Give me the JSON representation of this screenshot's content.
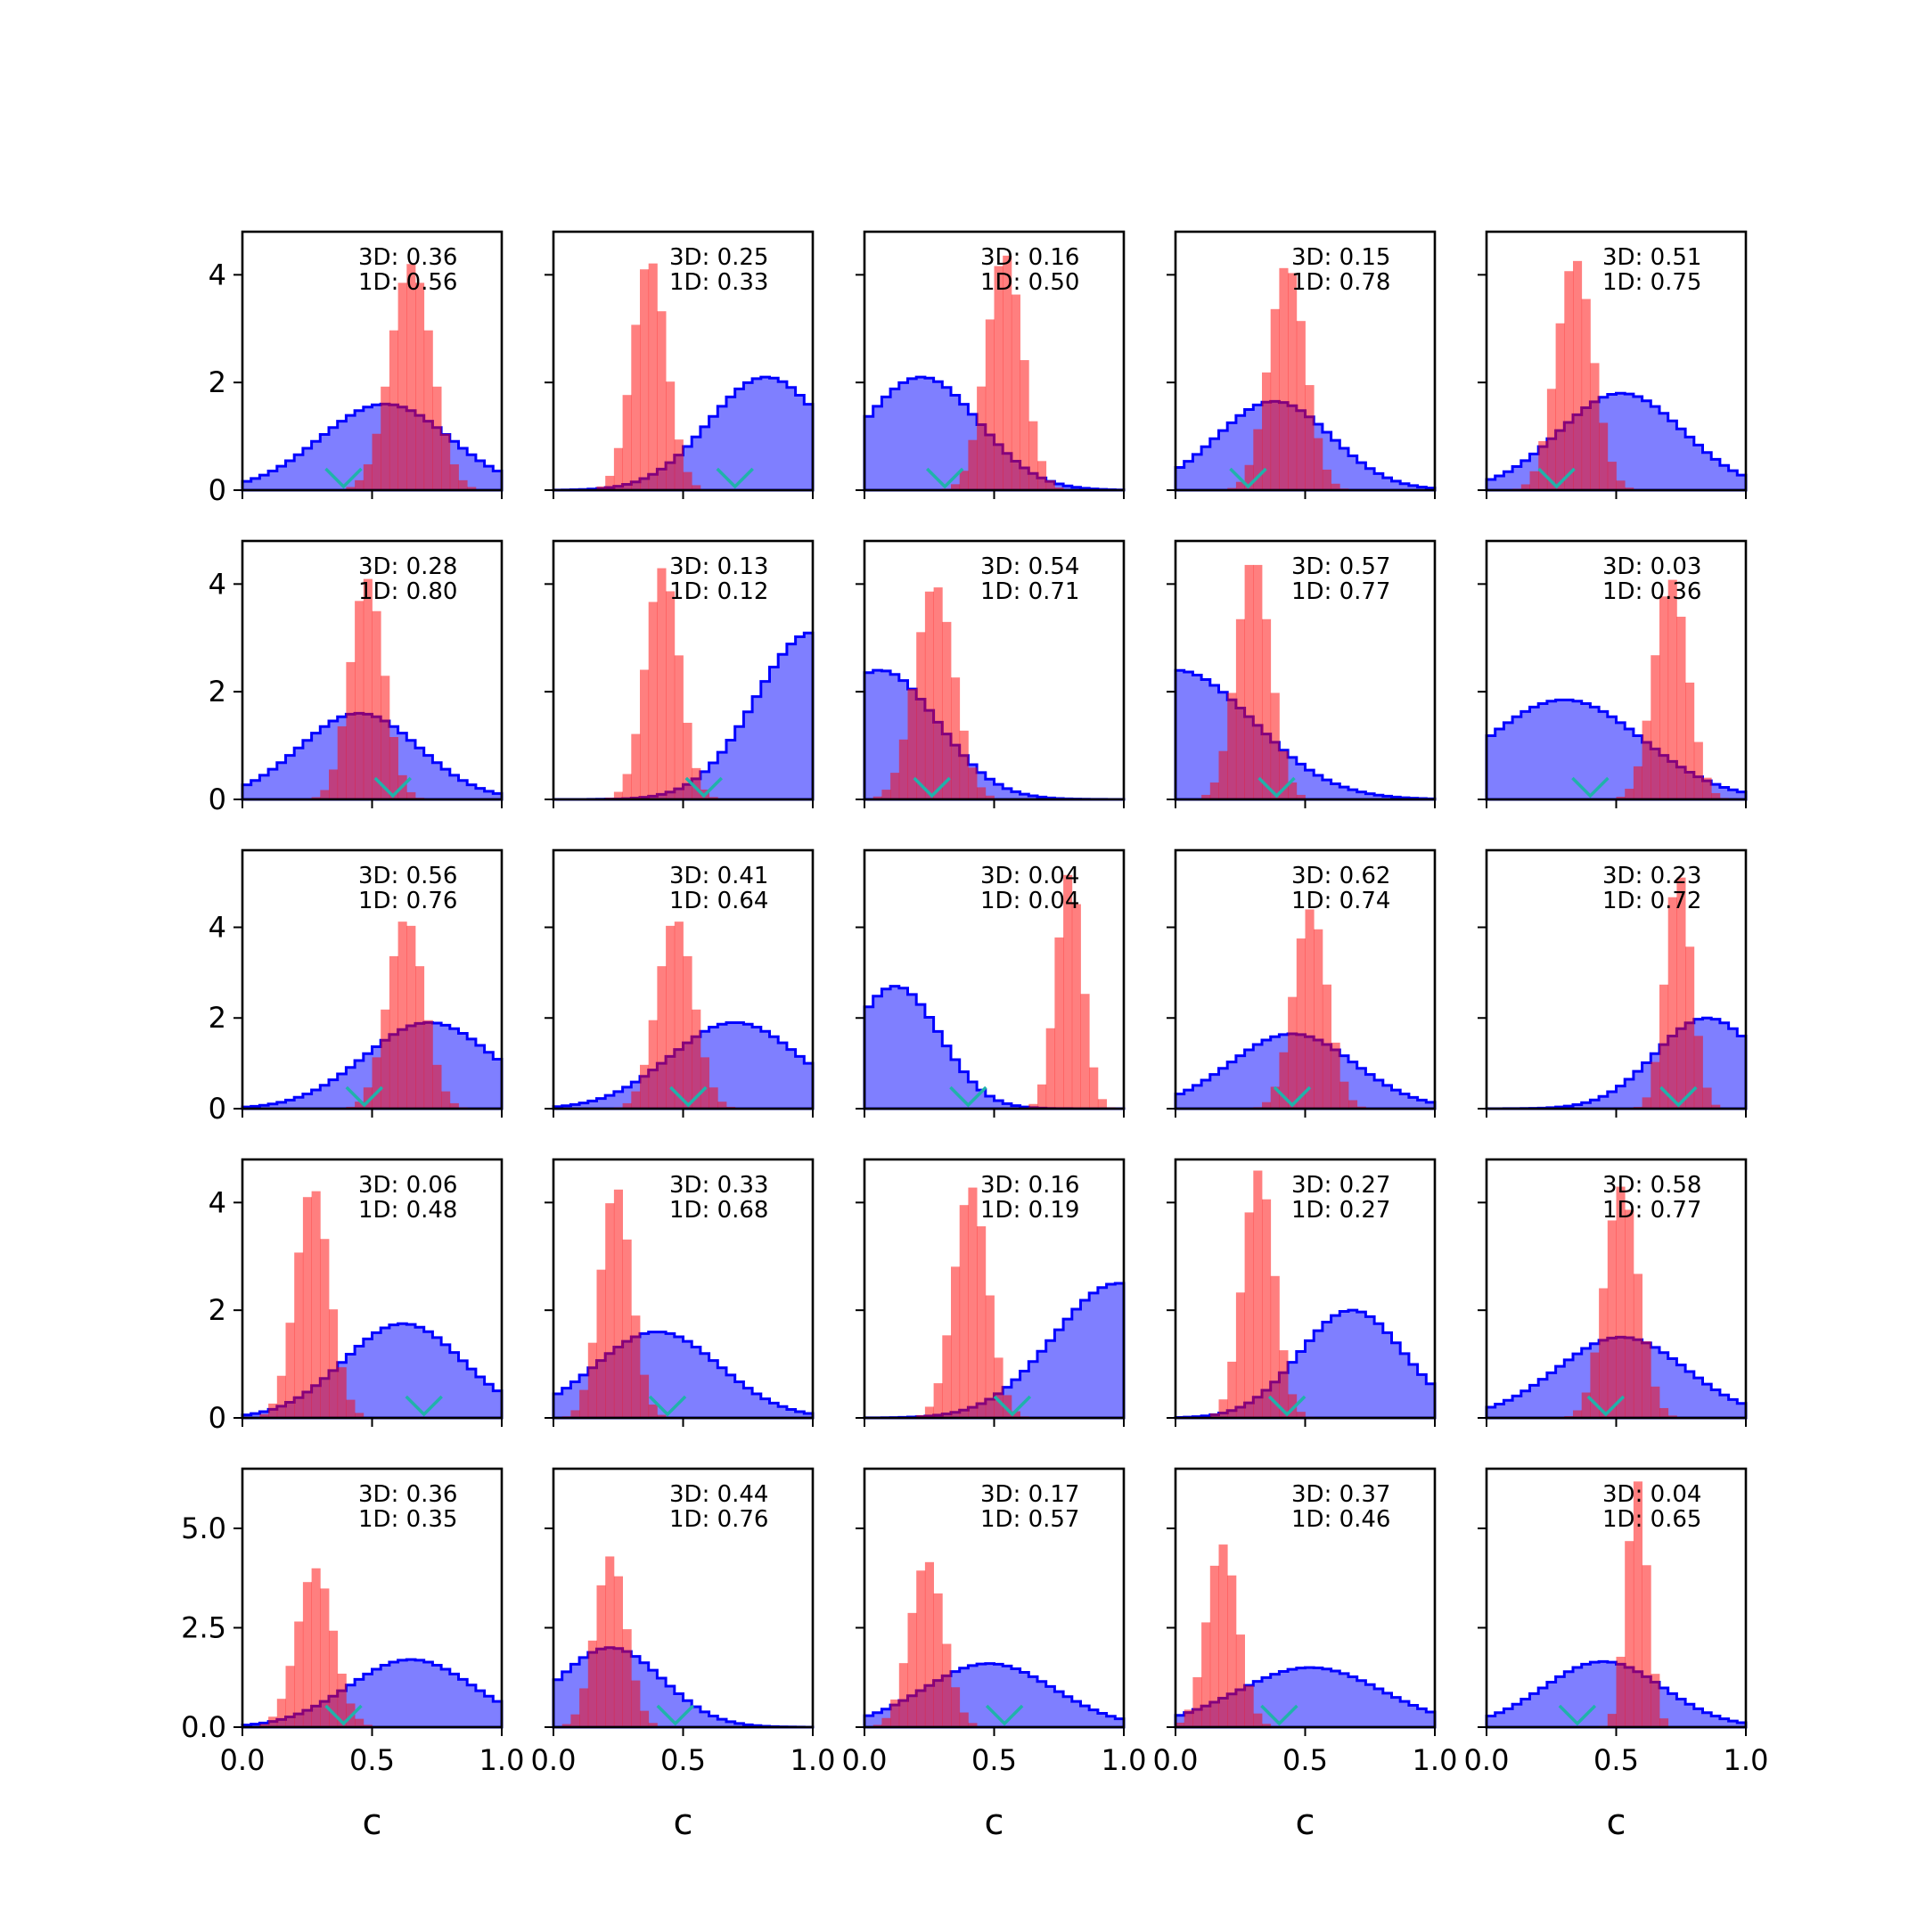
{
  "chart_data": {
    "type": "histogram-grid",
    "rows": 5,
    "cols": 5,
    "xlim": [
      0,
      1
    ],
    "xticks": [
      "0.0",
      "0.5",
      "1.0"
    ],
    "xlabel": "c",
    "row_yticks": [
      {
        "values": [
          0,
          2,
          4
        ],
        "labels": [
          "0",
          "2",
          "4"
        ],
        "ylim": [
          0,
          4.8
        ]
      },
      {
        "values": [
          0,
          2,
          4
        ],
        "labels": [
          "0",
          "2",
          "4"
        ],
        "ylim": [
          0,
          4.8
        ]
      },
      {
        "values": [
          0,
          2,
          4
        ],
        "labels": [
          "0",
          "2",
          "4"
        ],
        "ylim": [
          0,
          5.7
        ]
      },
      {
        "values": [
          0,
          2,
          4
        ],
        "labels": [
          "0",
          "2",
          "4"
        ],
        "ylim": [
          0,
          4.8
        ]
      },
      {
        "values": [
          0,
          2.5,
          5.0
        ],
        "labels": [
          "0.0",
          "2.5",
          "5.0"
        ],
        "ylim": [
          0,
          6.5
        ]
      }
    ],
    "colors": {
      "wide": "#0000ff",
      "narrow": "#ff0000",
      "marker": "#20b2aa"
    },
    "panels": [
      {
        "row": 0,
        "col": 0,
        "label_3d": "3D: 0.36",
        "label_1d": "1D: 0.56",
        "wide": {
          "mu": 0.55,
          "sigma": 0.25,
          "peak": 1.6
        },
        "narrow": {
          "mu": 0.65,
          "sigma": 0.08,
          "peak": 4.2
        },
        "marker": 0.39
      },
      {
        "row": 0,
        "col": 1,
        "label_3d": "3D: 0.25",
        "label_1d": "1D: 0.33",
        "wide": {
          "mu": 0.82,
          "sigma": 0.22,
          "peak": 2.1
        },
        "narrow": {
          "mu": 0.37,
          "sigma": 0.065,
          "peak": 4.3
        },
        "marker": 0.7
      },
      {
        "row": 0,
        "col": 2,
        "label_3d": "3D: 0.16",
        "label_1d": "1D: 0.50",
        "wide": {
          "mu": 0.22,
          "sigma": 0.22,
          "peak": 2.1
        },
        "narrow": {
          "mu": 0.54,
          "sigma": 0.07,
          "peak": 4.4
        },
        "marker": 0.31
      },
      {
        "row": 0,
        "col": 3,
        "label_3d": "3D: 0.15",
        "label_1d": "1D: 0.78",
        "wide": {
          "mu": 0.38,
          "sigma": 0.22,
          "peak": 1.65
        },
        "narrow": {
          "mu": 0.43,
          "sigma": 0.07,
          "peak": 4.2
        },
        "marker": 0.28
      },
      {
        "row": 0,
        "col": 4,
        "label_3d": "3D: 0.51",
        "label_1d": "1D: 0.75",
        "wide": {
          "mu": 0.52,
          "sigma": 0.24,
          "peak": 1.8
        },
        "narrow": {
          "mu": 0.34,
          "sigma": 0.07,
          "peak": 4.3
        },
        "marker": 0.27
      },
      {
        "row": 1,
        "col": 0,
        "label_3d": "3D: 0.28",
        "label_1d": "1D: 0.80",
        "wide": {
          "mu": 0.45,
          "sigma": 0.23,
          "peak": 1.6
        },
        "narrow": {
          "mu": 0.48,
          "sigma": 0.065,
          "peak": 4.1
        },
        "marker": 0.58
      },
      {
        "row": 1,
        "col": 1,
        "label_3d": "3D: 0.13",
        "label_1d": "1D: 0.12",
        "wide": {
          "mu": 1.0,
          "sigma": 0.22,
          "peak": 3.1
        },
        "narrow": {
          "mu": 0.42,
          "sigma": 0.065,
          "peak": 4.3
        },
        "marker": 0.58
      },
      {
        "row": 1,
        "col": 2,
        "label_3d": "3D: 0.54",
        "label_1d": "1D: 0.71",
        "wide": {
          "mu": 0.06,
          "sigma": 0.22,
          "peak": 2.4
        },
        "narrow": {
          "mu": 0.27,
          "sigma": 0.075,
          "peak": 4.0
        },
        "marker": 0.26
      },
      {
        "row": 1,
        "col": 3,
        "label_3d": "3D: 0.57",
        "label_1d": "1D: 0.77",
        "wide": {
          "mu": 0.0,
          "sigma": 0.3,
          "peak": 2.4
        },
        "narrow": {
          "mu": 0.3,
          "sigma": 0.065,
          "peak": 4.5
        },
        "marker": 0.39
      },
      {
        "row": 1,
        "col": 4,
        "label_3d": "3D: 0.03",
        "label_1d": "1D: 0.36",
        "wide": {
          "mu": 0.3,
          "sigma": 0.3,
          "peak": 1.85
        },
        "narrow": {
          "mu": 0.71,
          "sigma": 0.065,
          "peak": 4.1
        },
        "marker": 0.4
      },
      {
        "row": 2,
        "col": 0,
        "label_3d": "3D: 0.56",
        "label_1d": "1D: 0.76",
        "wide": {
          "mu": 0.72,
          "sigma": 0.25,
          "peak": 1.9
        },
        "narrow": {
          "mu": 0.63,
          "sigma": 0.07,
          "peak": 4.2
        },
        "marker": 0.47
      },
      {
        "row": 2,
        "col": 1,
        "label_3d": "3D: 0.41",
        "label_1d": "1D: 0.64",
        "wide": {
          "mu": 0.7,
          "sigma": 0.25,
          "peak": 1.9
        },
        "narrow": {
          "mu": 0.47,
          "sigma": 0.07,
          "peak": 4.2
        },
        "marker": 0.52
      },
      {
        "row": 2,
        "col": 2,
        "label_3d": "3D: 0.04",
        "label_1d": "1D: 0.04",
        "wide": {
          "mu": 0.12,
          "sigma": 0.17,
          "peak": 2.7
        },
        "narrow": {
          "mu": 0.79,
          "sigma": 0.05,
          "peak": 5.2
        },
        "marker": 0.4
      },
      {
        "row": 2,
        "col": 3,
        "label_3d": "3D: 0.62",
        "label_1d": "1D: 0.74",
        "wide": {
          "mu": 0.45,
          "sigma": 0.24,
          "peak": 1.65
        },
        "narrow": {
          "mu": 0.52,
          "sigma": 0.065,
          "peak": 4.4
        },
        "marker": 0.45
      },
      {
        "row": 2,
        "col": 4,
        "label_3d": "3D: 0.23",
        "label_1d": "1D: 0.72",
        "wide": {
          "mu": 0.85,
          "sigma": 0.2,
          "peak": 2.0
        },
        "narrow": {
          "mu": 0.74,
          "sigma": 0.05,
          "peak": 5.2
        },
        "marker": 0.74
      },
      {
        "row": 3,
        "col": 0,
        "label_3d": "3D: 0.06",
        "label_1d": "1D: 0.48",
        "wide": {
          "mu": 0.62,
          "sigma": 0.23,
          "peak": 1.75
        },
        "narrow": {
          "mu": 0.27,
          "sigma": 0.065,
          "peak": 4.3
        },
        "marker": 0.7
      },
      {
        "row": 3,
        "col": 1,
        "label_3d": "3D: 0.33",
        "label_1d": "1D: 0.68",
        "wide": {
          "mu": 0.4,
          "sigma": 0.24,
          "peak": 1.6
        },
        "narrow": {
          "mu": 0.24,
          "sigma": 0.06,
          "peak": 4.3
        },
        "marker": 0.44
      },
      {
        "row": 3,
        "col": 2,
        "label_3d": "3D: 0.16",
        "label_1d": "1D: 0.19",
        "wide": {
          "mu": 0.98,
          "sigma": 0.25,
          "peak": 2.5
        },
        "narrow": {
          "mu": 0.41,
          "sigma": 0.065,
          "peak": 4.3
        },
        "marker": 0.57
      },
      {
        "row": 3,
        "col": 3,
        "label_3d": "3D: 0.27",
        "label_1d": "1D: 0.27",
        "wide": {
          "mu": 0.68,
          "sigma": 0.2,
          "peak": 2.0
        },
        "narrow": {
          "mu": 0.32,
          "sigma": 0.06,
          "peak": 4.6
        },
        "marker": 0.43
      },
      {
        "row": 3,
        "col": 4,
        "label_3d": "3D: 0.58",
        "label_1d": "1D: 0.77",
        "wide": {
          "mu": 0.52,
          "sigma": 0.25,
          "peak": 1.5
        },
        "narrow": {
          "mu": 0.52,
          "sigma": 0.065,
          "peak": 4.3
        },
        "marker": 0.46
      },
      {
        "row": 4,
        "col": 0,
        "label_3d": "3D: 0.36",
        "label_1d": "1D: 0.35",
        "wide": {
          "mu": 0.65,
          "sigma": 0.24,
          "peak": 1.7
        },
        "narrow": {
          "mu": 0.28,
          "sigma": 0.07,
          "peak": 4.0
        },
        "marker": 0.39
      },
      {
        "row": 4,
        "col": 1,
        "label_3d": "3D: 0.44",
        "label_1d": "1D: 0.76",
        "wide": {
          "mu": 0.22,
          "sigma": 0.2,
          "peak": 2.0
        },
        "narrow": {
          "mu": 0.22,
          "sigma": 0.06,
          "peak": 4.3
        },
        "marker": 0.47
      },
      {
        "row": 4,
        "col": 2,
        "label_3d": "3D: 0.17",
        "label_1d": "1D: 0.57",
        "wide": {
          "mu": 0.48,
          "sigma": 0.25,
          "peak": 1.6
        },
        "narrow": {
          "mu": 0.24,
          "sigma": 0.065,
          "peak": 4.2
        },
        "marker": 0.54
      },
      {
        "row": 4,
        "col": 3,
        "label_3d": "3D: 0.37",
        "label_1d": "1D: 0.46",
        "wide": {
          "mu": 0.52,
          "sigma": 0.28,
          "peak": 1.5
        },
        "narrow": {
          "mu": 0.18,
          "sigma": 0.06,
          "peak": 4.6
        },
        "marker": 0.4
      },
      {
        "row": 4,
        "col": 4,
        "label_3d": "3D: 0.04",
        "label_1d": "1D: 0.65",
        "wide": {
          "mu": 0.45,
          "sigma": 0.23,
          "peak": 1.65
        },
        "narrow": {
          "mu": 0.58,
          "sigma": 0.04,
          "peak": 6.2
        },
        "marker": 0.35
      }
    ]
  }
}
